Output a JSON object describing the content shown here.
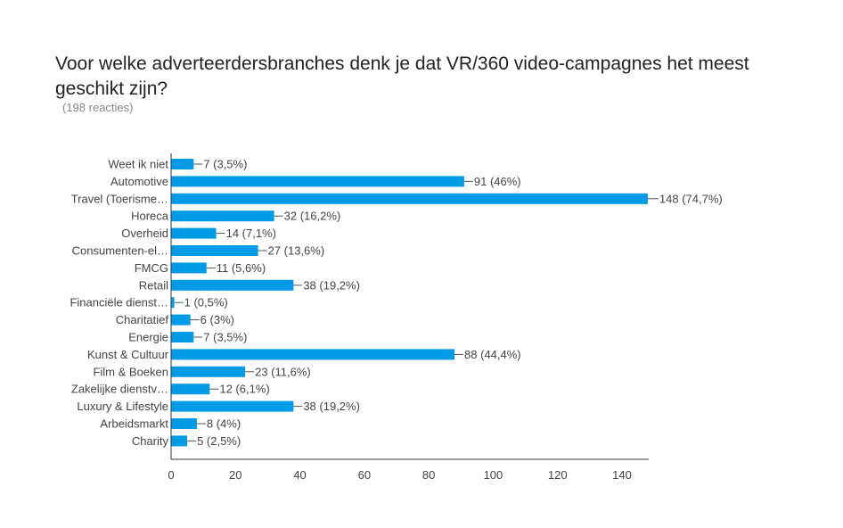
{
  "chart_data": {
    "type": "bar",
    "orientation": "horizontal",
    "title": "Voor welke adverteerdersbranches denk je dat VR/360 video-campagnes het meest geschikt zijn?",
    "subtitle": "(198 reacties)",
    "categories": [
      "Weet ik niet",
      "Automotive",
      "Travel (Toerisme…",
      "Horeca",
      "Overheid",
      "Consumenten-el…",
      "FMCG",
      "Retail",
      "Financiële dienst…",
      "Charitatief",
      "Energie",
      "Kunst & Cultuur",
      "Film & Boeken",
      "Zakelijke dienstv…",
      "Luxury & Lifestyle",
      "Arbeidsmarkt",
      "Charity"
    ],
    "values": [
      7,
      91,
      148,
      32,
      14,
      27,
      11,
      38,
      1,
      6,
      7,
      88,
      23,
      12,
      38,
      8,
      5
    ],
    "data_labels": [
      "7 (3,5%)",
      "91 (46%)",
      "148 (74,7%)",
      "32 (16,2%)",
      "14 (7,1%)",
      "27 (13,6%)",
      "11 (5,6%)",
      "38 (19,2%)",
      "1 (0,5%)",
      "6 (3%)",
      "7 (3,5%)",
      "88 (44,4%)",
      "23 (11,6%)",
      "12 (6,1%)",
      "38 (19,2%)",
      "8 (4%)",
      "5 (2,5%)"
    ],
    "xticks": [
      "0",
      "20",
      "40",
      "60",
      "80",
      "100",
      "120",
      "140"
    ],
    "xlim": [
      0,
      148
    ],
    "xlabel": "",
    "ylabel": "",
    "grid": false,
    "color": "#039be5"
  }
}
